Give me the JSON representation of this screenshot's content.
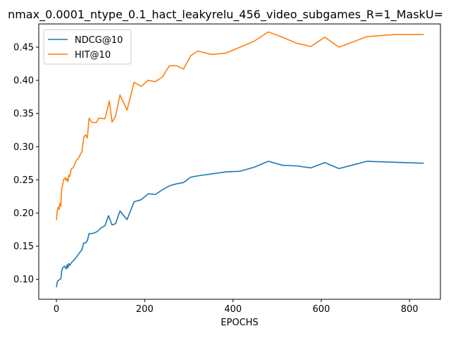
{
  "chart_data": {
    "type": "line",
    "title": "nmax_0.0001_ntype_0.1_hact_leakyrelu_456_video_subgames_R=1_MaskU=",
    "xlabel": "EPOCHS",
    "ylabel": "",
    "xlim": [
      -40,
      870
    ],
    "ylim": [
      0.07,
      0.485
    ],
    "xticks": [
      0,
      200,
      400,
      600,
      800
    ],
    "yticks": [
      0.1,
      0.15,
      0.2,
      0.25,
      0.3,
      0.35,
      0.4,
      0.45
    ],
    "xtick_labels": [
      "0",
      "200",
      "400",
      "600",
      "800"
    ],
    "ytick_labels": [
      "0.10",
      "0.15",
      "0.20",
      "0.25",
      "0.30",
      "0.35",
      "0.40",
      "0.45"
    ],
    "grid": false,
    "legend_position": "top-left",
    "series": [
      {
        "name": "NDCG@10",
        "color": "#1f77b4",
        "x": [
          0,
          2,
          4,
          8,
          10,
          12,
          14,
          18,
          22,
          24,
          26,
          28,
          30,
          34,
          38,
          45,
          50,
          58,
          62,
          66,
          70,
          74,
          80,
          86,
          92,
          100,
          110,
          118,
          126,
          134,
          144,
          160,
          176,
          192,
          208,
          224,
          240,
          256,
          272,
          288,
          304,
          320,
          352,
          384,
          416,
          448,
          480,
          512,
          544,
          576,
          608,
          640,
          704,
          832
        ],
        "y": [
          0.088,
          0.096,
          0.098,
          0.1,
          0.101,
          0.113,
          0.117,
          0.12,
          0.116,
          0.122,
          0.117,
          0.124,
          0.121,
          0.125,
          0.128,
          0.133,
          0.138,
          0.145,
          0.155,
          0.155,
          0.158,
          0.169,
          0.169,
          0.17,
          0.172,
          0.177,
          0.181,
          0.196,
          0.182,
          0.184,
          0.203,
          0.19,
          0.217,
          0.22,
          0.229,
          0.228,
          0.235,
          0.241,
          0.244,
          0.246,
          0.254,
          0.256,
          0.259,
          0.262,
          0.263,
          0.269,
          0.278,
          0.272,
          0.271,
          0.268,
          0.276,
          0.267,
          0.278,
          0.275
        ]
      },
      {
        "name": "HIT@10",
        "color": "#ff7f0e",
        "x": [
          0,
          2,
          4,
          6,
          8,
          10,
          12,
          14,
          16,
          20,
          22,
          24,
          26,
          28,
          30,
          34,
          38,
          45,
          50,
          58,
          62,
          66,
          70,
          74,
          80,
          90,
          96,
          110,
          120,
          126,
          134,
          144,
          160,
          176,
          192,
          208,
          224,
          240,
          256,
          272,
          288,
          304,
          320,
          352,
          384,
          416,
          448,
          480,
          512,
          544,
          576,
          608,
          640,
          704,
          768,
          832
        ],
        "y": [
          0.189,
          0.204,
          0.209,
          0.205,
          0.215,
          0.21,
          0.238,
          0.242,
          0.25,
          0.253,
          0.249,
          0.252,
          0.247,
          0.257,
          0.255,
          0.267,
          0.268,
          0.279,
          0.283,
          0.293,
          0.314,
          0.318,
          0.313,
          0.343,
          0.337,
          0.336,
          0.343,
          0.342,
          0.369,
          0.337,
          0.346,
          0.378,
          0.355,
          0.397,
          0.391,
          0.4,
          0.398,
          0.405,
          0.422,
          0.422,
          0.417,
          0.437,
          0.444,
          0.439,
          0.441,
          0.45,
          0.459,
          0.473,
          0.465,
          0.456,
          0.451,
          0.465,
          0.45,
          0.466,
          0.469,
          0.469
        ]
      }
    ]
  }
}
